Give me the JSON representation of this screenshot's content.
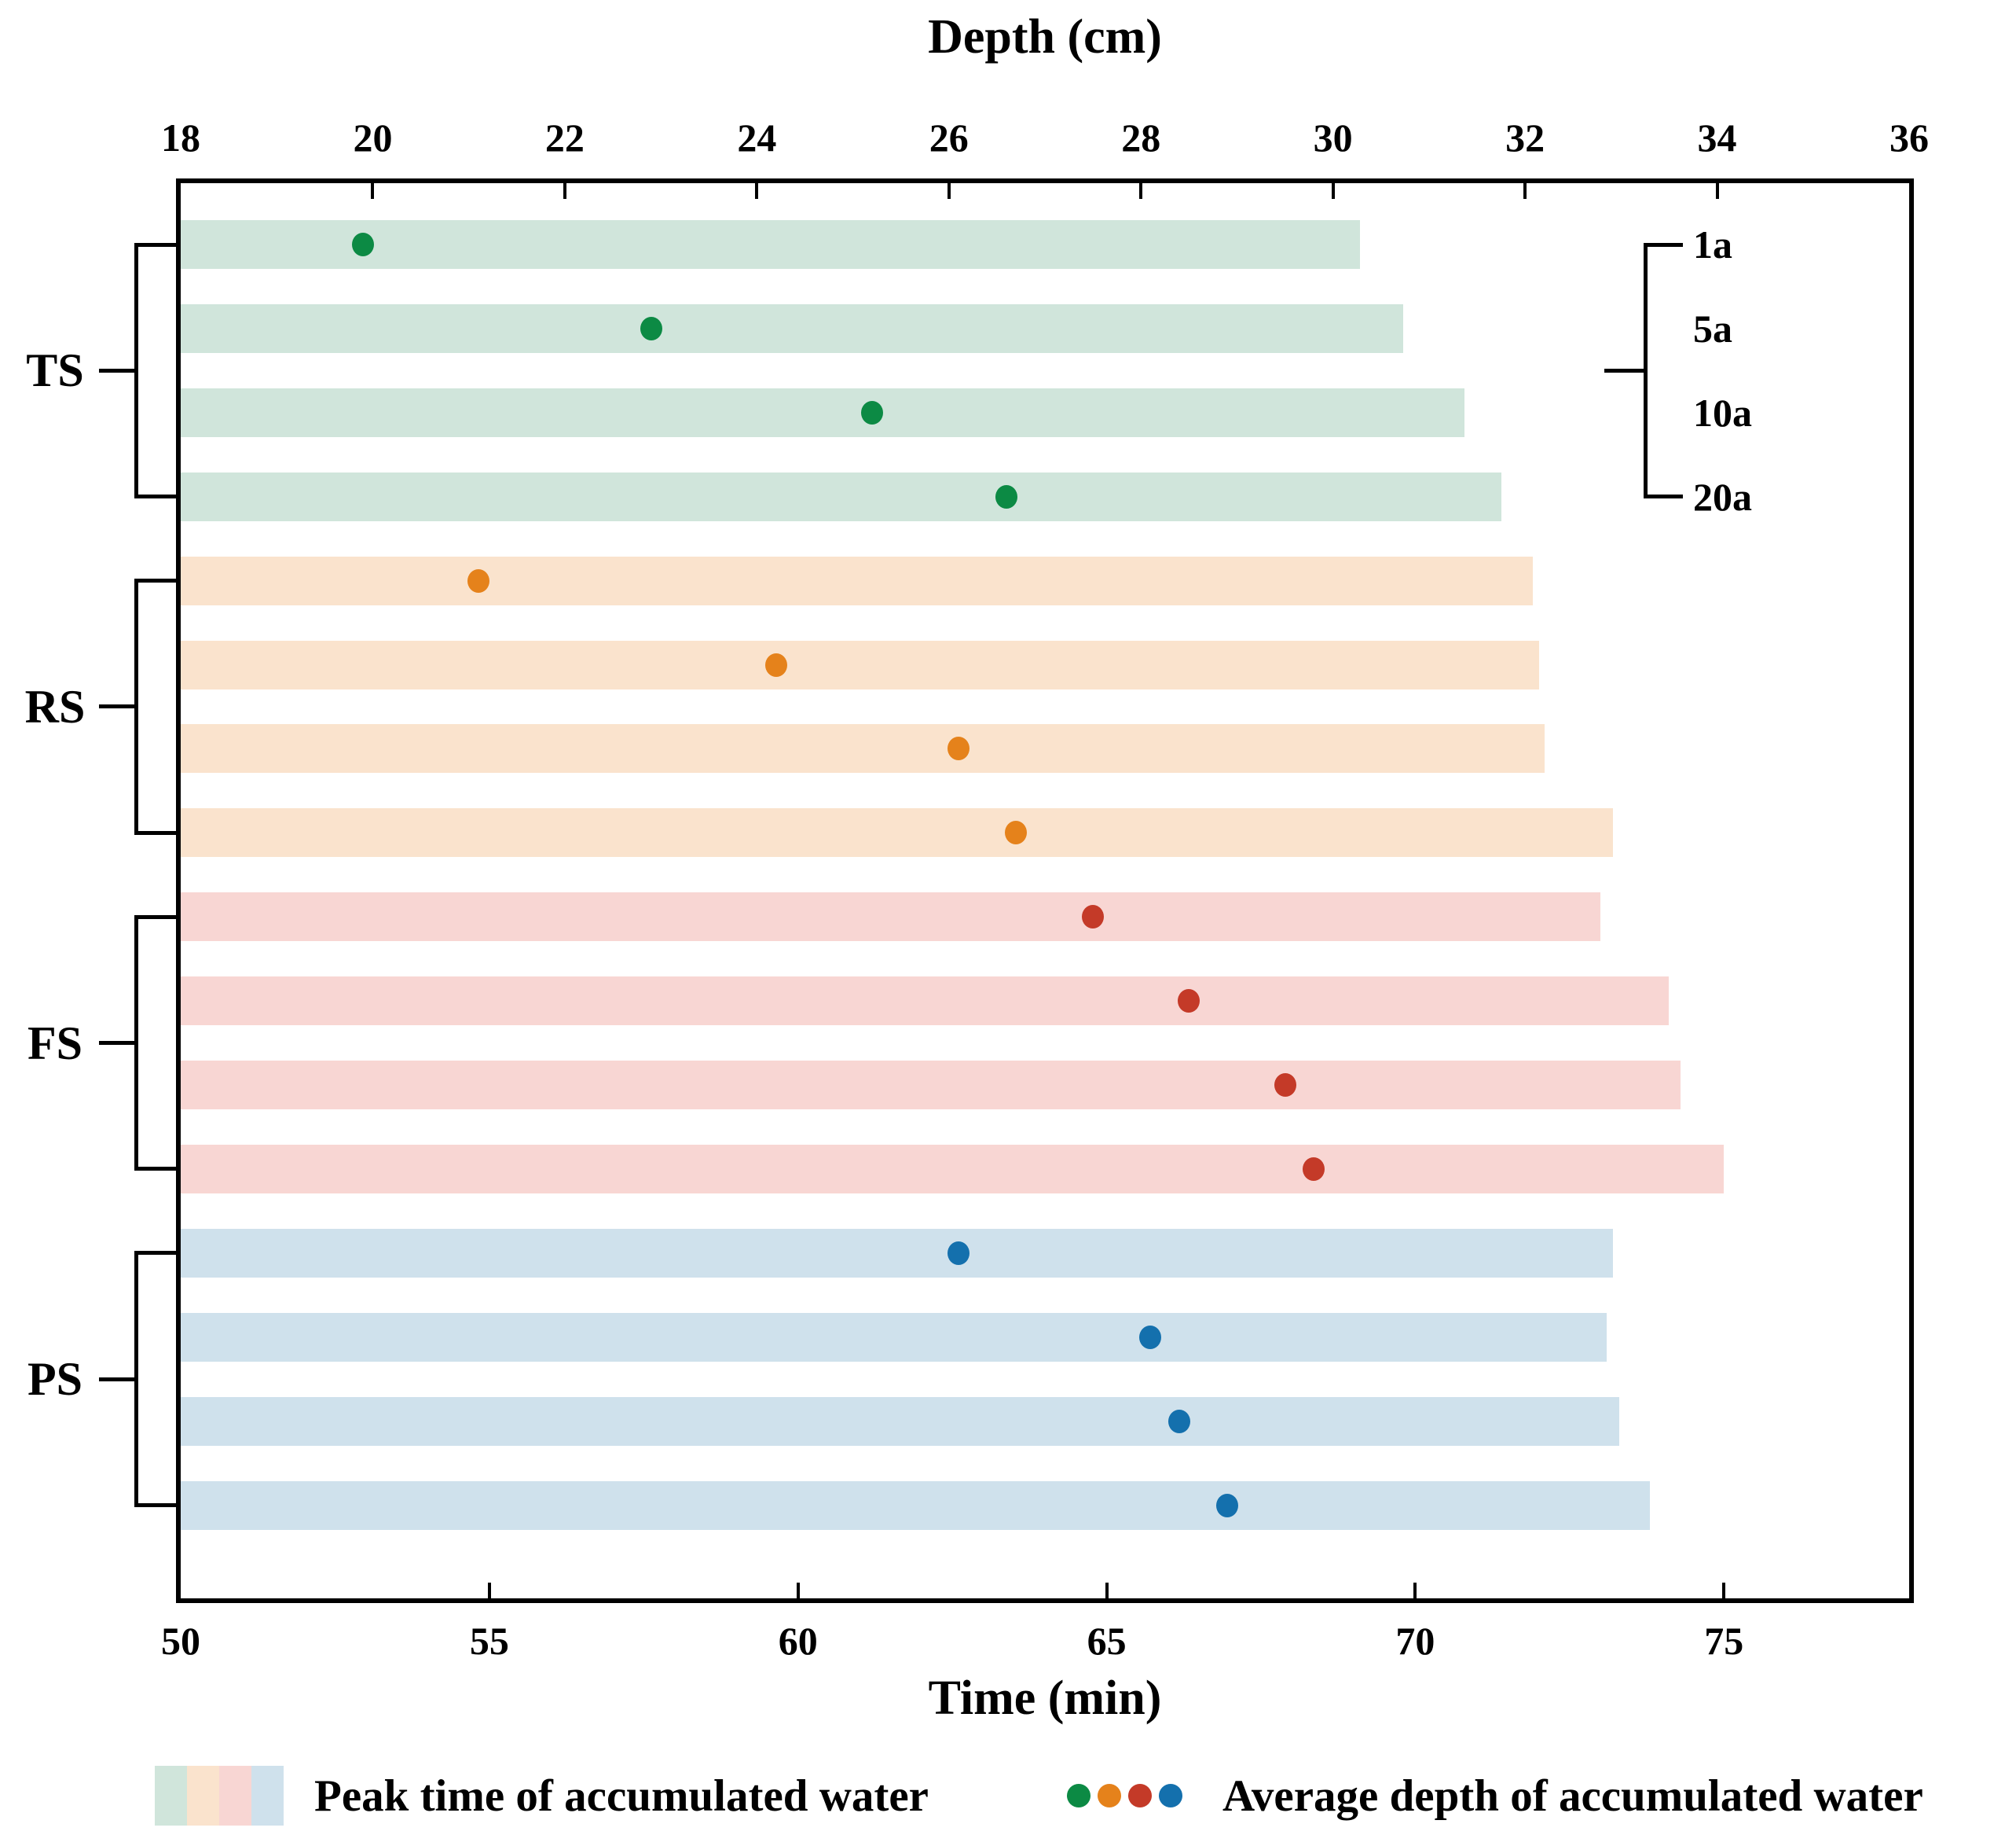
{
  "titles": {
    "top_axis": "Depth (cm)",
    "bottom_axis": "Time (min)"
  },
  "scenario_legend": {
    "items": [
      "1a",
      "5a",
      "10a",
      "20a"
    ]
  },
  "bottom_legend": {
    "bars_label": "Peak time of accumulated water",
    "dots_label": "Average depth of accumulated water"
  },
  "chart_data": {
    "type": "bar",
    "subtype": "horizontal-grouped-bars-with-scatter-overlay",
    "grid": false,
    "groups": [
      "TS",
      "RS",
      "FS",
      "PS"
    ],
    "scenarios": [
      "1a",
      "5a",
      "10a",
      "20a"
    ],
    "bar_metric": "Peak time of accumulated water (min)",
    "dot_metric": "Average depth of accumulated water (cm)",
    "series": [
      {
        "group": "TS",
        "bar_color": "#d0e5db",
        "dot_color": "#0c8a44",
        "peak_time_min": [
          69.1,
          69.8,
          70.8,
          71.4
        ],
        "avg_depth_cm": [
          19.9,
          22.9,
          25.2,
          26.6
        ]
      },
      {
        "group": "RS",
        "bar_color": "#fae3cd",
        "dot_color": "#e5821b",
        "peak_time_min": [
          71.9,
          72.0,
          72.1,
          73.2
        ],
        "avg_depth_cm": [
          21.1,
          24.2,
          26.1,
          26.7
        ]
      },
      {
        "group": "FS",
        "bar_color": "#f8d6d3",
        "dot_color": "#c43a28",
        "peak_time_min": [
          73.0,
          74.1,
          74.3,
          75.0
        ],
        "avg_depth_cm": [
          27.5,
          28.5,
          29.5,
          29.8
        ]
      },
      {
        "group": "PS",
        "bar_color": "#cfe1ec",
        "dot_color": "#1470ad",
        "peak_time_min": [
          73.2,
          73.1,
          73.3,
          73.8
        ],
        "avg_depth_cm": [
          26.1,
          28.1,
          28.4,
          28.9
        ]
      }
    ],
    "x_axis_bottom": {
      "label": "Time (min)",
      "min": 50,
      "max": 78,
      "ticks": [
        50,
        55,
        60,
        65,
        70,
        75
      ]
    },
    "x_axis_top": {
      "label": "Depth (cm)",
      "min": 18,
      "max": 36,
      "ticks": [
        18,
        20,
        22,
        24,
        26,
        28,
        30,
        32,
        34,
        36
      ]
    },
    "legend_position": "scenario bracket top-right inside plot; metric legend below chart"
  }
}
